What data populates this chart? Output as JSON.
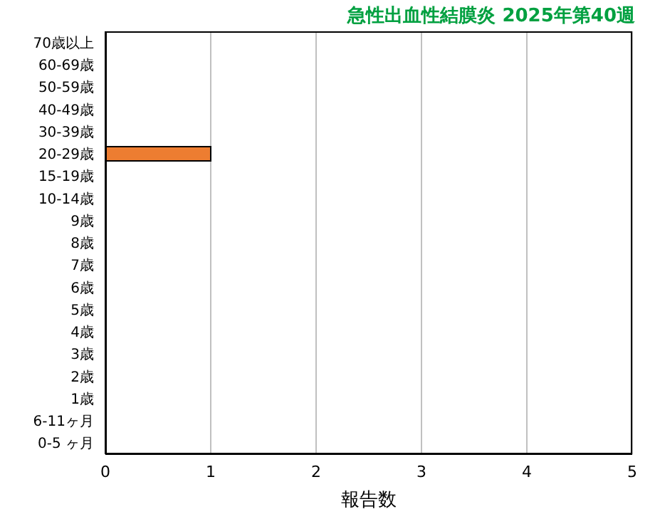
{
  "chart_data": {
    "type": "bar",
    "orientation": "horizontal",
    "title": "急性出血性結膜炎 2025年第40週",
    "xlabel": "報告数",
    "categories": [
      "70歳以上",
      "60-69歳",
      "50-59歳",
      "40-49歳",
      "30-39歳",
      "20-29歳",
      "15-19歳",
      "10-14歳",
      "9歳",
      "8歳",
      "7歳",
      "6歳",
      "5歳",
      "4歳",
      "3歳",
      "2歳",
      "1歳",
      "6-11ヶ月",
      "0-5 ヶ月"
    ],
    "values": [
      0,
      0,
      0,
      0,
      0,
      1,
      0,
      0,
      0,
      0,
      0,
      0,
      0,
      0,
      0,
      0,
      0,
      0,
      0
    ],
    "color": "#ed7d31",
    "xlim": [
      0,
      5
    ],
    "xticks": [
      0,
      1,
      2,
      3,
      4,
      5
    ],
    "grid": "x"
  }
}
